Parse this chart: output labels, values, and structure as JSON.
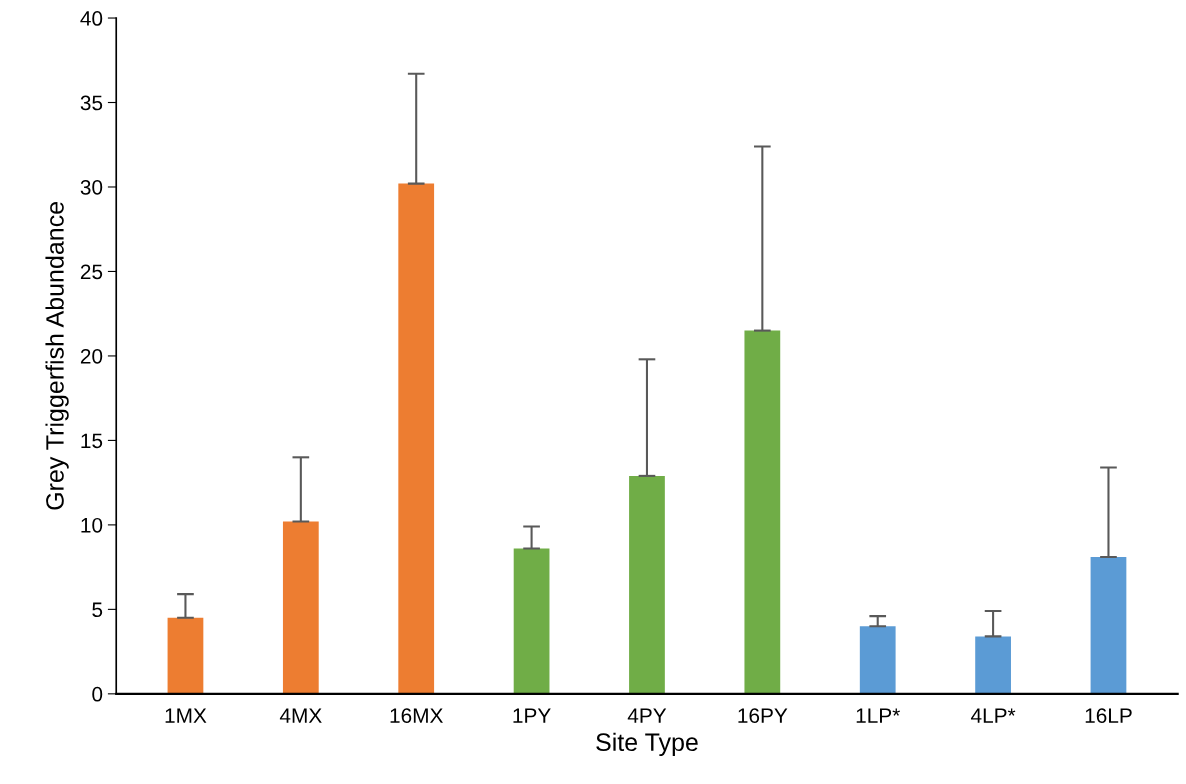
{
  "chart_data": {
    "type": "bar",
    "xlabel": "Site Type",
    "ylabel": "Grey Triggerfish Abundance",
    "categories": [
      "1MX",
      "4MX",
      "16MX",
      "1PY",
      "4PY",
      "16PY",
      "1LP*",
      "4LP*",
      "16LP"
    ],
    "values": [
      4.5,
      10.2,
      30.2,
      8.6,
      12.9,
      21.5,
      4.0,
      3.4,
      8.1
    ],
    "errors": [
      1.4,
      3.8,
      6.5,
      1.3,
      6.9,
      10.9,
      0.6,
      1.5,
      5.3
    ],
    "colors": [
      "#ed7d31",
      "#ed7d31",
      "#ed7d31",
      "#70ad47",
      "#70ad47",
      "#70ad47",
      "#5b9bd5",
      "#5b9bd5",
      "#5b9bd5"
    ],
    "ylim": [
      0,
      40
    ],
    "yticks": [
      0,
      5,
      10,
      15,
      20,
      25,
      30,
      35,
      40
    ],
    "grid": false
  }
}
